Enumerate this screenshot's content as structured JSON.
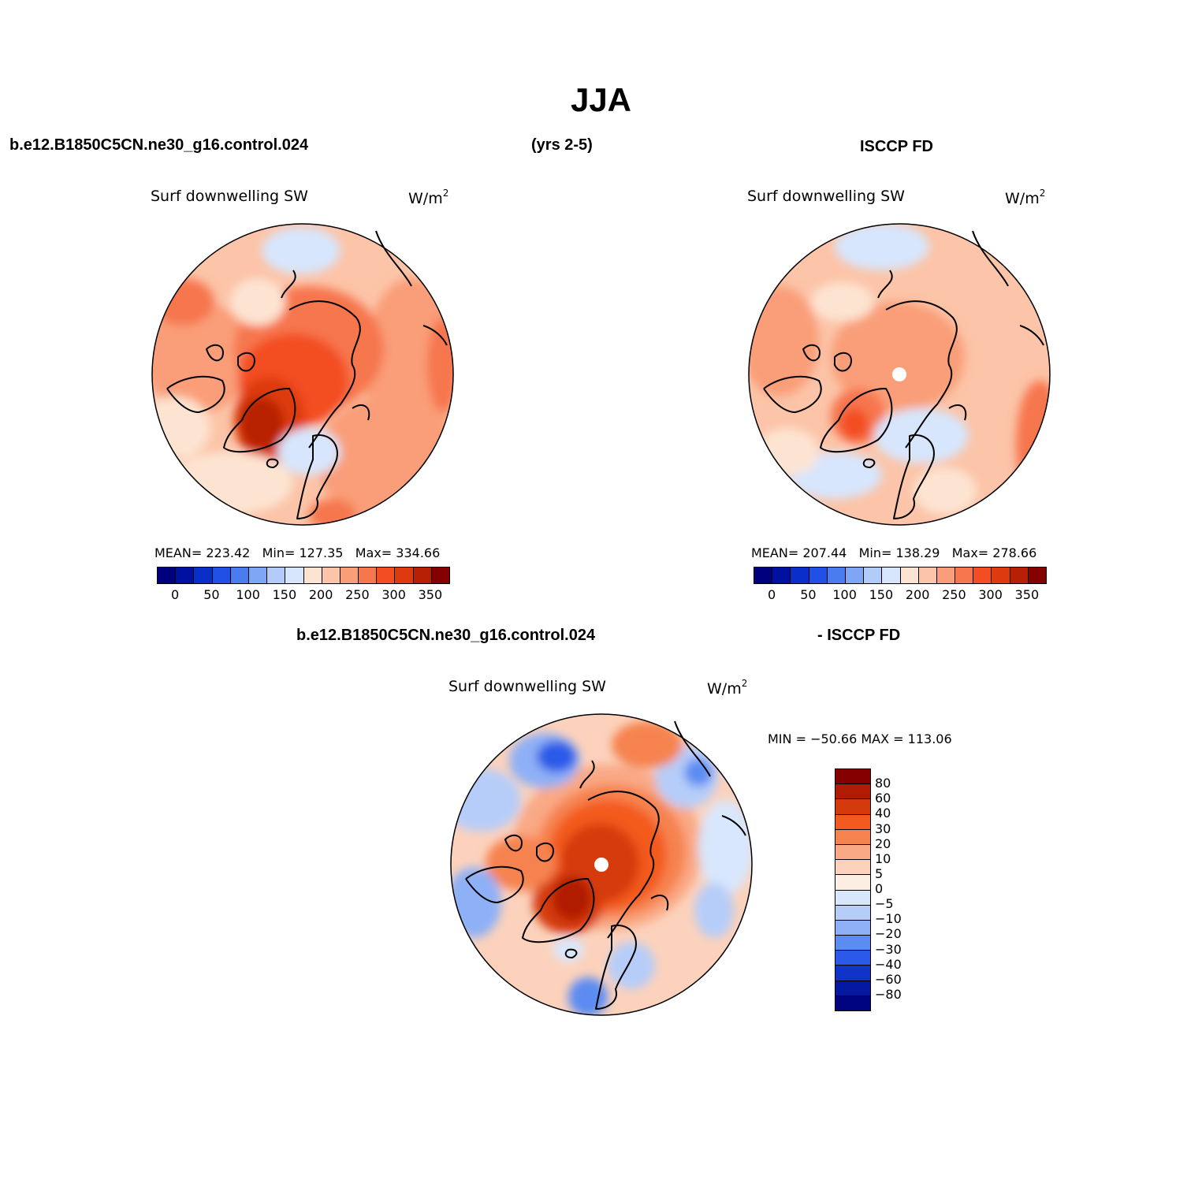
{
  "title": "JJA",
  "header": {
    "case_left": "b.e12.B1850C5CN.ne30_g16.control.024",
    "years": "(yrs 2-5)",
    "obs_right": "ISCCP FD"
  },
  "panel_model": {
    "variable": "Surf downwelling SW",
    "units_base": "W/m",
    "units_exp": "2",
    "mean_label": "MEAN=",
    "mean": "223.42",
    "min_label": "Min=",
    "min": "127.35",
    "max_label": "Max=",
    "max": "334.66"
  },
  "panel_obs": {
    "variable": "Surf downwelling SW",
    "units_base": "W/m",
    "units_exp": "2",
    "mean_label": "MEAN=",
    "mean": "207.44",
    "min_label": "Min=",
    "min": "138.29",
    "max_label": "Max=",
    "max": "278.66"
  },
  "diff_header": {
    "left": "b.e12.B1850C5CN.ne30_g16.control.024",
    "right": "- ISCCP FD"
  },
  "panel_diff": {
    "variable": "Surf downwelling SW",
    "units_base": "W/m",
    "units_exp": "2",
    "minmax": "MIN = −50.66 MAX = 113.06"
  },
  "abs_colorbar": {
    "colors": [
      "#00007f",
      "#0010a0",
      "#0a2fc8",
      "#2050e6",
      "#4a7cf0",
      "#7fa5f5",
      "#b3cbf9",
      "#d7e6fd",
      "#fde4d2",
      "#fcc4a8",
      "#f99e78",
      "#f6764d",
      "#f34e23",
      "#dd3a10",
      "#b82006",
      "#850000"
    ],
    "ticks": [
      "0",
      "50",
      "100",
      "150",
      "200",
      "250",
      "300",
      "350"
    ]
  },
  "diff_colorbar": {
    "colors": [
      "#850000",
      "#b01b04",
      "#d53a0c",
      "#f35a1f",
      "#f6834f",
      "#f9a985",
      "#fcd2bc",
      "#fdeee3",
      "#d8e7fd",
      "#b6cdf9",
      "#8eb0f6",
      "#5b8cf2",
      "#2c5ae8",
      "#1134c8",
      "#0418a4",
      "#00047e"
    ],
    "ticks": [
      "80",
      "60",
      "40",
      "30",
      "20",
      "10",
      "5",
      "0",
      "−5",
      "−10",
      "−20",
      "−30",
      "−40",
      "−60",
      "−80"
    ]
  },
  "chart_data": [
    {
      "type": "heatmap",
      "title": "Surf downwelling SW",
      "subtitle": "b.e12.B1850C5CN.ne30_g16.control.024 (yrs 2-5)",
      "units": "W/m2",
      "mean": 223.42,
      "min": 127.35,
      "max": 334.66,
      "levels": [
        0,
        50,
        100,
        150,
        200,
        250,
        300,
        350
      ]
    },
    {
      "type": "heatmap",
      "title": "Surf downwelling SW",
      "subtitle": "ISCCP FD",
      "units": "W/m2",
      "mean": 207.44,
      "min": 138.29,
      "max": 278.66,
      "levels": [
        0,
        50,
        100,
        150,
        200,
        250,
        300,
        350
      ]
    },
    {
      "type": "heatmap",
      "title": "Surf downwelling SW",
      "subtitle": "b.e12.B1850C5CN.ne30_g16.control.024 - ISCCP FD",
      "units": "W/m2",
      "min": -50.66,
      "max": 113.06,
      "levels": [
        -80,
        -60,
        -40,
        -30,
        -20,
        -10,
        -5,
        0,
        5,
        10,
        20,
        30,
        40,
        60,
        80
      ]
    }
  ]
}
